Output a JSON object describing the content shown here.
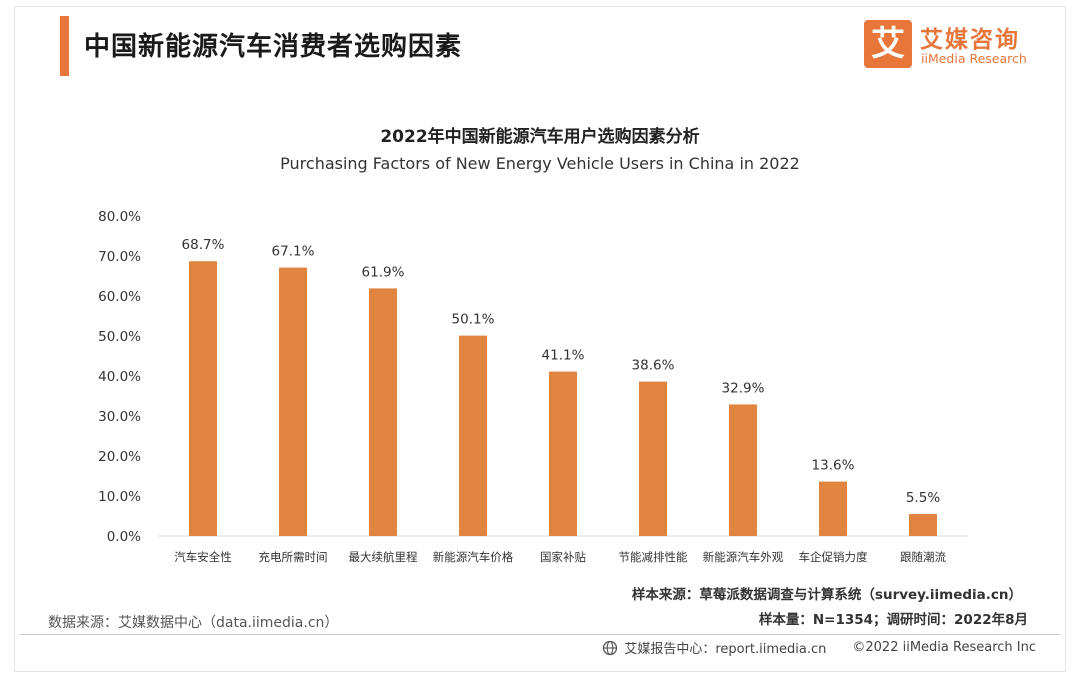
{
  "header": {
    "title": "中国新能源汽车消费者选购因素"
  },
  "logo": {
    "mark": "艾",
    "name_cn": "艾媒咨询",
    "name_en": "iiMedia Research"
  },
  "colors": {
    "accent": "#e8763a",
    "bar": "#e0843f"
  },
  "chart_data": {
    "type": "bar",
    "title": "2022年中国新能源汽车用户选购因素分析",
    "subtitle": "Purchasing Factors of New Energy Vehicle Users in China in 2022",
    "categories": [
      "汽车安全性",
      "充电所需时间",
      "最大续航里程",
      "新能源汽车价格",
      "国家补贴",
      "节能减排性能",
      "新能源汽车外观",
      "车企促销力度",
      "跟随潮流"
    ],
    "values": [
      68.7,
      67.1,
      61.9,
      50.1,
      41.1,
      38.6,
      32.9,
      13.6,
      5.5
    ],
    "value_labels": [
      "68.7%",
      "67.1%",
      "61.9%",
      "50.1%",
      "41.1%",
      "38.6%",
      "32.9%",
      "13.6%",
      "5.5%"
    ],
    "yticks": [
      "0.0%",
      "10.0%",
      "20.0%",
      "30.0%",
      "40.0%",
      "50.0%",
      "60.0%",
      "70.0%",
      "80.0%"
    ],
    "ylim": [
      0,
      80
    ],
    "xlabel": "",
    "ylabel": "",
    "grid": false
  },
  "sources": {
    "sample_source": "样本来源：草莓派数据调查与计算系统（survey.iimedia.cn）",
    "sample_info": "样本量：N=1354；调研时间：2022年8月",
    "data_source": "数据来源：艾媒数据中心（data.iimedia.cn）"
  },
  "footer": {
    "report": "艾媒报告中心：report.iimedia.cn",
    "copyright": "©2022  iiMedia Research  Inc",
    "icon": "globe-icon"
  }
}
